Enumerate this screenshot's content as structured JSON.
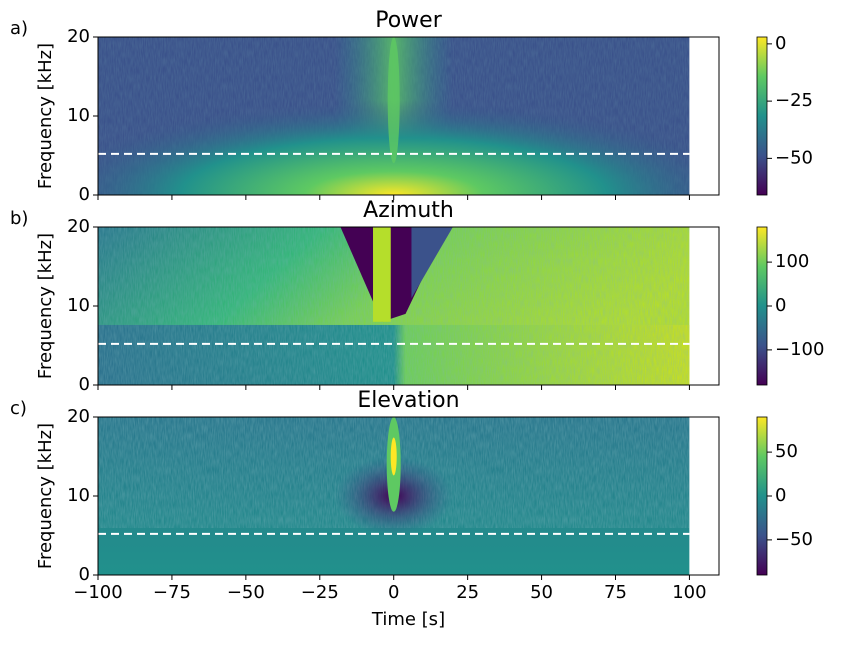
{
  "chart_data": [
    {
      "type": "spectrogram",
      "panel_label": "a)",
      "title": "Power",
      "ylabel": "Frequency [kHz]",
      "colormap": "viridis",
      "extent": [
        -100,
        100,
        0,
        20
      ],
      "xlim": [
        -100,
        110
      ],
      "xticks": [
        {
          "value": -100,
          "label": "−100"
        },
        {
          "value": -75,
          "label": "−75"
        },
        {
          "value": -50,
          "label": "−50"
        },
        {
          "value": -25,
          "label": "−25"
        },
        0,
        25,
        50,
        75,
        100
      ],
      "ylim": [
        0,
        20
      ],
      "yticks": [
        0,
        10,
        20
      ],
      "hline": 5.2,
      "hline_color": "#ffffff",
      "clim": [
        -66,
        3
      ],
      "cticks": [
        0,
        {
          "value": -25,
          "label": "−25"
        },
        {
          "value": -50,
          "label": "−50"
        }
      ]
    },
    {
      "type": "spectrogram",
      "panel_label": "b)",
      "title": "Azimuth",
      "ylabel": "Frequency [kHz]",
      "colormap": "viridis",
      "extent": [
        -100,
        100,
        0,
        20
      ],
      "xlim": [
        -100,
        110
      ],
      "xticks": [
        {
          "value": -100,
          "label": "−100"
        },
        {
          "value": -75,
          "label": "−75"
        },
        {
          "value": -50,
          "label": "−50"
        },
        {
          "value": -25,
          "label": "−25"
        },
        0,
        25,
        50,
        75,
        100
      ],
      "ylim": [
        0,
        20
      ],
      "yticks": [
        0,
        10,
        20
      ],
      "hline": 5.2,
      "hline_color": "#ffffff",
      "clim": [
        -180,
        180
      ],
      "cticks": [
        100,
        0,
        {
          "value": -100,
          "label": "−100"
        }
      ]
    },
    {
      "type": "spectrogram",
      "panel_label": "c)",
      "title": "Elevation",
      "ylabel": "Frequency [kHz]",
      "xlabel": "Time [s]",
      "colormap": "viridis",
      "extent": [
        -100,
        100,
        0,
        20
      ],
      "xlim": [
        -100,
        110
      ],
      "xticks": [
        {
          "value": -100,
          "label": "−100"
        },
        {
          "value": -75,
          "label": "−75"
        },
        {
          "value": -50,
          "label": "−50"
        },
        {
          "value": -25,
          "label": "−25"
        },
        0,
        25,
        50,
        75,
        100
      ],
      "ylim": [
        0,
        20
      ],
      "yticks": [
        0,
        10,
        20
      ],
      "hline": 5.2,
      "hline_color": "#ffffff",
      "clim": [
        -90,
        90
      ],
      "cticks": [
        50,
        0,
        {
          "value": -50,
          "label": "−50"
        }
      ]
    }
  ]
}
